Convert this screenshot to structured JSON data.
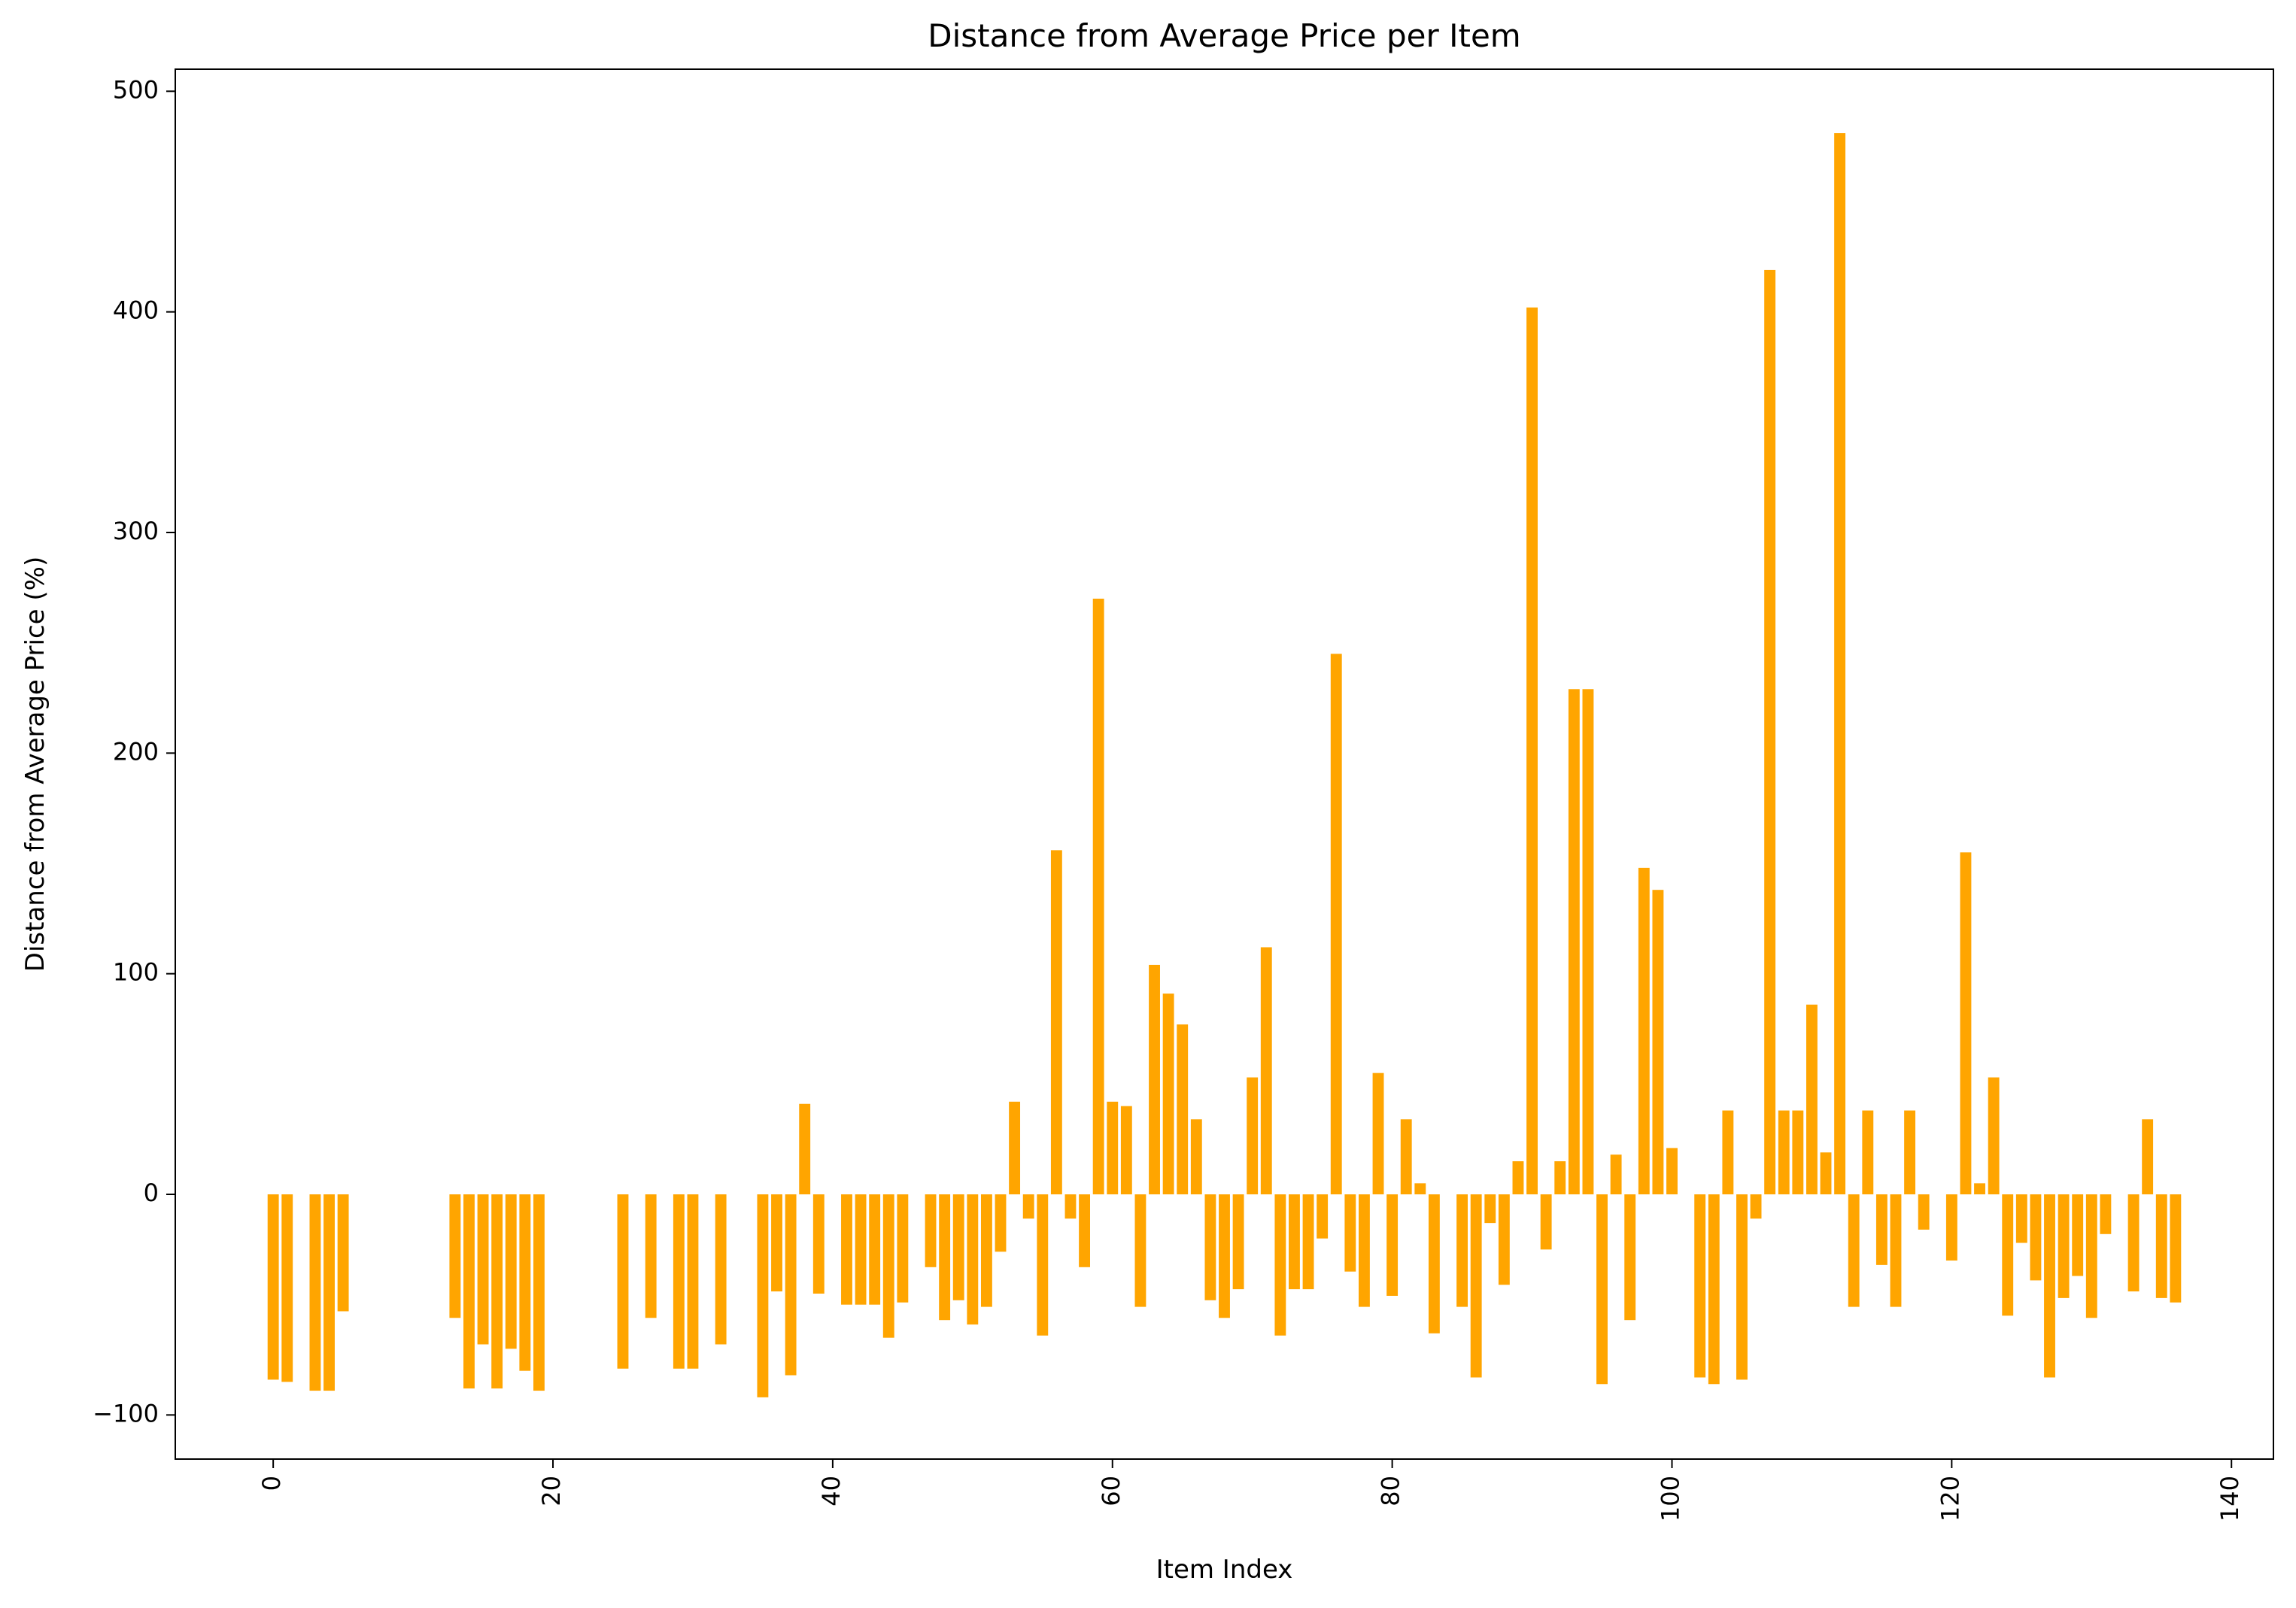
{
  "chart_data": {
    "type": "bar",
    "title": "Distance from Average Price per Item",
    "xlabel": "Item Index",
    "ylabel": "Distance from Average Price (%)",
    "xlim": [
      -7,
      143
    ],
    "ylim": [
      -120,
      510
    ],
    "xticks": [
      0,
      20,
      40,
      60,
      80,
      100,
      120,
      140
    ],
    "yticks": [
      -100,
      0,
      100,
      200,
      300,
      400,
      500
    ],
    "xtick_labels": [
      "0",
      "20",
      "40",
      "60",
      "80",
      "100",
      "120",
      "140"
    ],
    "ytick_labels": [
      "−100",
      "0",
      "100",
      "200",
      "300",
      "400",
      "500"
    ],
    "xtick_rotation": 90,
    "grid": false,
    "bar_color": "#ffa500",
    "bars": [
      {
        "x": 0,
        "value": -84
      },
      {
        "x": 1,
        "value": -85
      },
      {
        "x": 3,
        "value": -89
      },
      {
        "x": 4,
        "value": -89
      },
      {
        "x": 5,
        "value": -53
      },
      {
        "x": 13,
        "value": -56
      },
      {
        "x": 14,
        "value": -88
      },
      {
        "x": 15,
        "value": -68
      },
      {
        "x": 16,
        "value": -88
      },
      {
        "x": 17,
        "value": -70
      },
      {
        "x": 18,
        "value": -80
      },
      {
        "x": 19,
        "value": -89
      },
      {
        "x": 25,
        "value": -79
      },
      {
        "x": 27,
        "value": -56
      },
      {
        "x": 29,
        "value": -79
      },
      {
        "x": 30,
        "value": -79
      },
      {
        "x": 32,
        "value": -68
      },
      {
        "x": 35,
        "value": -92
      },
      {
        "x": 36,
        "value": -44
      },
      {
        "x": 37,
        "value": -82
      },
      {
        "x": 38,
        "value": 41
      },
      {
        "x": 39,
        "value": -45
      },
      {
        "x": 41,
        "value": -50
      },
      {
        "x": 42,
        "value": -50
      },
      {
        "x": 43,
        "value": -50
      },
      {
        "x": 44,
        "value": -65
      },
      {
        "x": 45,
        "value": -49
      },
      {
        "x": 47,
        "value": -33
      },
      {
        "x": 48,
        "value": -57
      },
      {
        "x": 49,
        "value": -48
      },
      {
        "x": 50,
        "value": -59
      },
      {
        "x": 51,
        "value": -51
      },
      {
        "x": 52,
        "value": -26
      },
      {
        "x": 53,
        "value": 42
      },
      {
        "x": 54,
        "value": -11
      },
      {
        "x": 55,
        "value": -64
      },
      {
        "x": 56,
        "value": 156
      },
      {
        "x": 57,
        "value": -11
      },
      {
        "x": 58,
        "value": -33
      },
      {
        "x": 59,
        "value": 270
      },
      {
        "x": 60,
        "value": 42
      },
      {
        "x": 61,
        "value": 40
      },
      {
        "x": 62,
        "value": -51
      },
      {
        "x": 63,
        "value": 104
      },
      {
        "x": 64,
        "value": 91
      },
      {
        "x": 65,
        "value": 77
      },
      {
        "x": 66,
        "value": 34
      },
      {
        "x": 67,
        "value": -48
      },
      {
        "x": 68,
        "value": -56
      },
      {
        "x": 69,
        "value": -43
      },
      {
        "x": 70,
        "value": 53
      },
      {
        "x": 71,
        "value": 112
      },
      {
        "x": 72,
        "value": -64
      },
      {
        "x": 73,
        "value": -43
      },
      {
        "x": 74,
        "value": -43
      },
      {
        "x": 75,
        "value": -20
      },
      {
        "x": 76,
        "value": 245
      },
      {
        "x": 77,
        "value": -35
      },
      {
        "x": 78,
        "value": -51
      },
      {
        "x": 79,
        "value": 55
      },
      {
        "x": 80,
        "value": -46
      },
      {
        "x": 81,
        "value": 34
      },
      {
        "x": 82,
        "value": 5
      },
      {
        "x": 83,
        "value": -63
      },
      {
        "x": 85,
        "value": -51
      },
      {
        "x": 86,
        "value": -83
      },
      {
        "x": 87,
        "value": -13
      },
      {
        "x": 88,
        "value": -41
      },
      {
        "x": 89,
        "value": 15
      },
      {
        "x": 90,
        "value": 402
      },
      {
        "x": 91,
        "value": -25
      },
      {
        "x": 92,
        "value": 15
      },
      {
        "x": 93,
        "value": 229
      },
      {
        "x": 94,
        "value": 229
      },
      {
        "x": 95,
        "value": -86
      },
      {
        "x": 96,
        "value": 18
      },
      {
        "x": 97,
        "value": -57
      },
      {
        "x": 98,
        "value": 148
      },
      {
        "x": 99,
        "value": 138
      },
      {
        "x": 100,
        "value": 21
      },
      {
        "x": 102,
        "value": -83
      },
      {
        "x": 103,
        "value": -86
      },
      {
        "x": 104,
        "value": 38
      },
      {
        "x": 105,
        "value": -84
      },
      {
        "x": 106,
        "value": -11
      },
      {
        "x": 107,
        "value": 419
      },
      {
        "x": 108,
        "value": 38
      },
      {
        "x": 109,
        "value": 38
      },
      {
        "x": 110,
        "value": 86
      },
      {
        "x": 111,
        "value": 19
      },
      {
        "x": 112,
        "value": 481
      },
      {
        "x": 113,
        "value": -51
      },
      {
        "x": 114,
        "value": 38
      },
      {
        "x": 115,
        "value": -32
      },
      {
        "x": 116,
        "value": -51
      },
      {
        "x": 117,
        "value": 38
      },
      {
        "x": 118,
        "value": -16
      },
      {
        "x": 120,
        "value": -30
      },
      {
        "x": 121,
        "value": 155
      },
      {
        "x": 122,
        "value": 5
      },
      {
        "x": 123,
        "value": 53
      },
      {
        "x": 124,
        "value": -55
      },
      {
        "x": 125,
        "value": -22
      },
      {
        "x": 126,
        "value": -39
      },
      {
        "x": 127,
        "value": -83
      },
      {
        "x": 128,
        "value": -47
      },
      {
        "x": 129,
        "value": -37
      },
      {
        "x": 130,
        "value": -56
      },
      {
        "x": 131,
        "value": -18
      },
      {
        "x": 133,
        "value": -44
      },
      {
        "x": 134,
        "value": 34
      },
      {
        "x": 135,
        "value": -47
      },
      {
        "x": 136,
        "value": -49
      }
    ]
  }
}
